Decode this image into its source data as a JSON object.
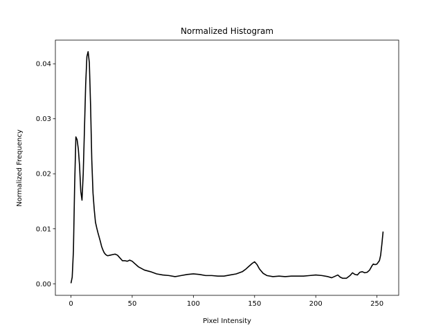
{
  "chart_data": {
    "type": "line",
    "title": "Normalized Histogram",
    "xlabel": "Pixel Intensity",
    "ylabel": "Normalized Frequency",
    "xlim": [
      -12.75,
      267.75
    ],
    "ylim": [
      -0.0021,
      0.0443
    ],
    "xticks": [
      0,
      50,
      100,
      150,
      200,
      250
    ],
    "yticks": [
      0.0,
      0.01,
      0.02,
      0.03,
      0.04
    ],
    "ytick_labels": [
      "0.00",
      "0.01",
      "0.02",
      "0.03",
      "0.04"
    ],
    "grid": false,
    "line_color": "#000000",
    "series": [
      {
        "x": [
          0,
          1,
          2,
          3,
          4,
          5,
          6,
          7,
          8,
          9,
          10,
          11,
          12,
          13,
          14,
          15,
          16,
          17,
          18,
          19,
          20,
          21,
          22,
          23,
          24,
          25,
          26,
          27,
          28,
          29,
          30,
          32,
          34,
          36,
          38,
          40,
          42,
          44,
          46,
          48,
          50,
          55,
          60,
          65,
          70,
          75,
          80,
          85,
          90,
          95,
          100,
          105,
          110,
          115,
          120,
          125,
          130,
          135,
          140,
          143,
          145,
          147,
          148,
          150,
          152,
          154,
          157,
          160,
          165,
          170,
          175,
          180,
          185,
          190,
          195,
          200,
          205,
          210,
          213,
          216,
          218,
          220,
          222,
          225,
          228,
          230,
          232,
          234,
          236,
          238,
          240,
          242,
          244,
          246,
          247,
          248,
          249,
          250,
          251,
          252,
          253,
          254,
          255
        ],
        "y": [
          0.0001,
          0.0012,
          0.006,
          0.018,
          0.0267,
          0.0262,
          0.0245,
          0.0215,
          0.0168,
          0.0152,
          0.02,
          0.028,
          0.0362,
          0.0413,
          0.0422,
          0.0402,
          0.0325,
          0.0225,
          0.0165,
          0.0135,
          0.0112,
          0.0102,
          0.0093,
          0.0085,
          0.0077,
          0.0068,
          0.0062,
          0.0057,
          0.0054,
          0.0052,
          0.0051,
          0.0052,
          0.0053,
          0.0054,
          0.0052,
          0.0047,
          0.0042,
          0.0042,
          0.0041,
          0.0043,
          0.0041,
          0.0031,
          0.0025,
          0.0022,
          0.0018,
          0.0016,
          0.0015,
          0.0013,
          0.0015,
          0.0017,
          0.0018,
          0.0017,
          0.0015,
          0.0015,
          0.0014,
          0.0014,
          0.0016,
          0.0018,
          0.0022,
          0.0027,
          0.0031,
          0.0035,
          0.0037,
          0.004,
          0.0035,
          0.0027,
          0.0019,
          0.0015,
          0.0013,
          0.0014,
          0.0013,
          0.0014,
          0.0014,
          0.0014,
          0.0015,
          0.0016,
          0.0015,
          0.0013,
          0.0011,
          0.0014,
          0.0016,
          0.0012,
          0.001,
          0.001,
          0.0015,
          0.002,
          0.0017,
          0.0016,
          0.0021,
          0.0022,
          0.002,
          0.0021,
          0.0025,
          0.0033,
          0.0036,
          0.0035,
          0.0035,
          0.0036,
          0.0039,
          0.0042,
          0.0052,
          0.0072,
          0.0095
        ]
      }
    ]
  }
}
